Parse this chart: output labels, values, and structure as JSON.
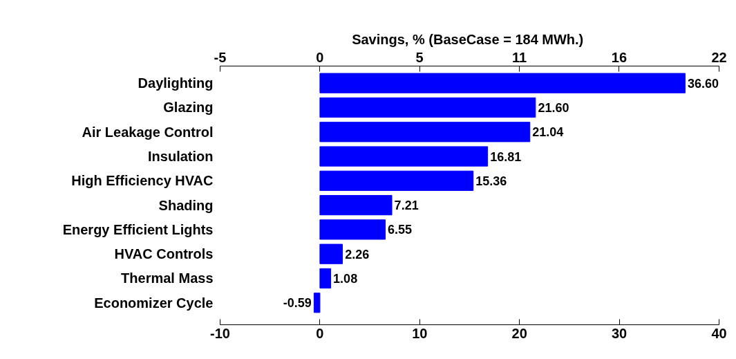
{
  "chart_data": {
    "type": "bar",
    "orientation": "horizontal",
    "x2label": "Savings, % (BaseCase  = 184 MWh.)",
    "categories": [
      "Daylighting",
      "Glazing",
      "Air Leakage Control",
      "Insulation",
      "High Efficiency HVAC",
      "Shading",
      "Energy Efficient Lights",
      "HVAC Controls",
      "Thermal Mass",
      "Economizer Cycle"
    ],
    "values": [
      36.6,
      21.6,
      21.04,
      16.81,
      15.36,
      7.21,
      6.55,
      2.26,
      1.08,
      -0.59
    ],
    "color": "#0000ff",
    "xlim": [
      -10,
      40
    ],
    "xticks": [
      -10,
      0,
      10,
      20,
      30,
      40
    ],
    "x2lim": [
      -5.43,
      21.74
    ],
    "x2ticks": [
      {
        "value": -5.43,
        "label": "-5"
      },
      0,
      {
        "value": 5.43,
        "label": "5"
      },
      {
        "value": 10.87,
        "label": "11"
      },
      {
        "value": 16.3,
        "label": "16"
      },
      {
        "value": 21.74,
        "label": "22"
      }
    ],
    "value_labels": [
      "36.60",
      "21.60",
      "21.04",
      "16.81",
      "15.36",
      "7.21",
      "6.55",
      "2.26",
      "1.08",
      "-0.59"
    ],
    "grid": false
  }
}
